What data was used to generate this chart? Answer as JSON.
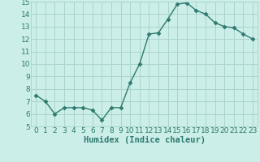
{
  "x": [
    0,
    1,
    2,
    3,
    4,
    5,
    6,
    7,
    8,
    9,
    10,
    11,
    12,
    13,
    14,
    15,
    16,
    17,
    18,
    19,
    20,
    21,
    22,
    23
  ],
  "y": [
    7.5,
    7.0,
    6.0,
    6.5,
    6.5,
    6.5,
    6.3,
    5.5,
    6.5,
    6.5,
    8.5,
    10.0,
    12.4,
    12.5,
    13.6,
    14.8,
    14.9,
    14.3,
    14.0,
    13.3,
    13.0,
    12.9,
    12.4,
    12.0
  ],
  "line_color": "#2d7a6e",
  "marker": "D",
  "marker_size": 2.5,
  "bg_color": "#cceee8",
  "grid_color": "#aad4ce",
  "xlabel": "Humidex (Indice chaleur)",
  "ylim": [
    5,
    15
  ],
  "xlim": [
    -0.5,
    23.5
  ],
  "yticks": [
    5,
    6,
    7,
    8,
    9,
    10,
    11,
    12,
    13,
    14,
    15
  ],
  "xticks": [
    0,
    1,
    2,
    3,
    4,
    5,
    6,
    7,
    8,
    9,
    10,
    11,
    12,
    13,
    14,
    15,
    16,
    17,
    18,
    19,
    20,
    21,
    22,
    23
  ],
  "tick_label_fontsize": 6.5,
  "xlabel_fontsize": 7.5,
  "line_width": 1.0
}
